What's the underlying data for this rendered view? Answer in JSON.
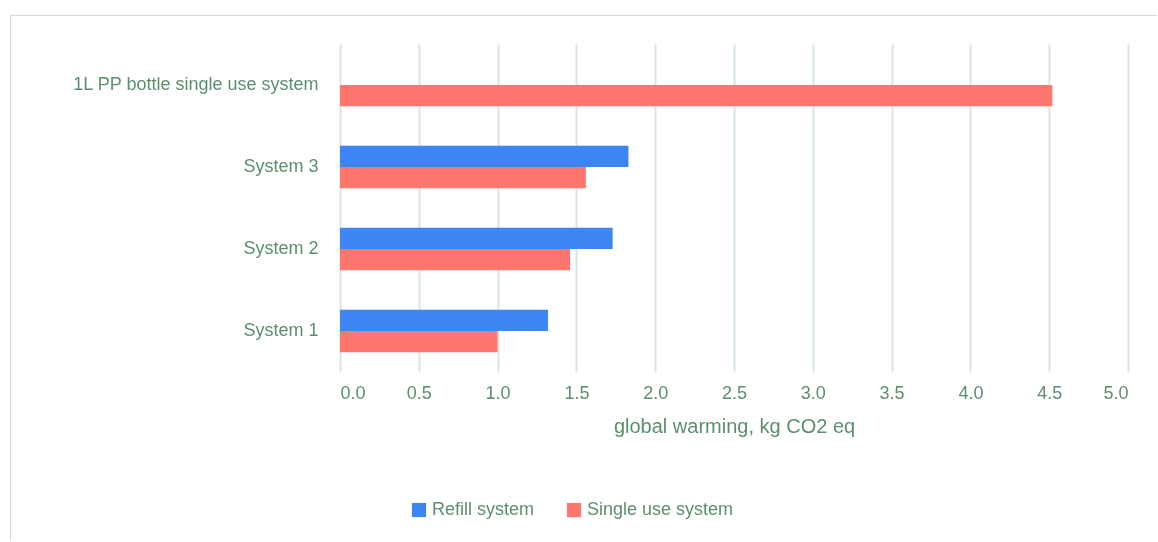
{
  "chart_data": {
    "type": "bar",
    "orientation": "horizontal",
    "categories": [
      "1L PP bottle single use system",
      "System 3",
      "System 2",
      "System 1"
    ],
    "series": [
      {
        "name": "Refill system",
        "color": "#3c85f2",
        "values": [
          null,
          1.83,
          1.73,
          1.32
        ]
      },
      {
        "name": "Single use system",
        "color": "#ff766e",
        "values": [
          4.52,
          1.56,
          1.46,
          1.0
        ]
      }
    ],
    "xlabel": "global warming, kg CO2 eq",
    "xlim": [
      0,
      5
    ],
    "xticks": [
      {
        "value": 0,
        "label": "0.0"
      },
      0.5,
      {
        "value": 1,
        "label": "1.0"
      },
      1.5,
      {
        "value": 2,
        "label": "2.0"
      },
      2.5,
      {
        "value": 3,
        "label": "3.0"
      },
      3.5,
      {
        "value": 4,
        "label": "4.0"
      },
      4.5,
      {
        "value": 5,
        "label": "5.0"
      }
    ],
    "grid": "x",
    "legend": "bottom"
  }
}
